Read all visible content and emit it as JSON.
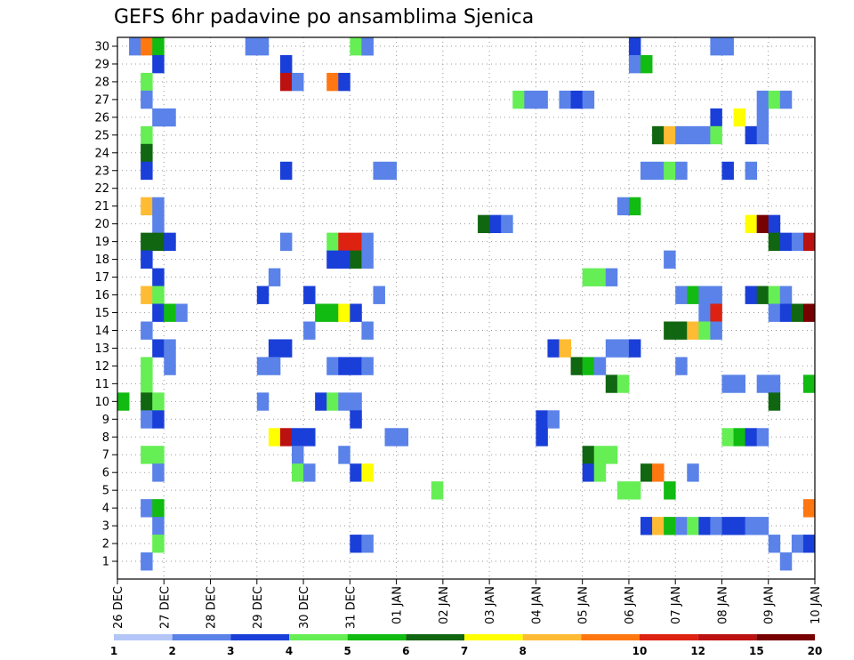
{
  "chart_data": {
    "type": "heatmap",
    "title": "GEFS 6hr padavine po ansamblima Sjenica",
    "xlabel": "",
    "ylabel": "",
    "x_tick_labels": [
      "26 DEC",
      "27 DEC",
      "28 DEC",
      "29 DEC",
      "30 DEC",
      "31 DEC",
      "01 JAN",
      "02 JAN",
      "03 JAN",
      "04 JAN",
      "05 JAN",
      "06 JAN",
      "07 JAN",
      "08 JAN",
      "09 JAN",
      "10 JAN"
    ],
    "y_tick_labels": [
      "1",
      "2",
      "3",
      "4",
      "5",
      "6",
      "7",
      "8",
      "9",
      "10",
      "11",
      "12",
      "13",
      "14",
      "15",
      "16",
      "17",
      "18",
      "19",
      "20",
      "21",
      "22",
      "23",
      "24",
      "25",
      "26",
      "27",
      "28",
      "29",
      "30"
    ],
    "xlim": [
      0,
      60
    ],
    "ylim": [
      0,
      30
    ],
    "grid": true,
    "legend_placement": "bottom",
    "legend": {
      "colors": [
        "#b3c6f7",
        "#5a82e8",
        "#1a3fd8",
        "#66ee55",
        "#11bb11",
        "#116611",
        "#ffff00",
        "#ffbb33",
        "#ff7711",
        "#dd2211",
        "#bb1111",
        "#770000"
      ],
      "labels": [
        "1",
        "2",
        "3",
        "4",
        "5",
        "6",
        "7",
        "8",
        "10",
        "12",
        "15",
        "20"
      ]
    },
    "cells": [
      [
        2,
        30,
        1
      ],
      [
        3,
        30,
        8
      ],
      [
        4,
        30,
        4
      ],
      [
        12,
        30,
        1
      ],
      [
        13,
        30,
        1
      ],
      [
        21,
        30,
        3
      ],
      [
        22,
        30,
        1
      ],
      [
        22,
        30,
        1
      ],
      [
        45,
        30,
        2
      ],
      [
        52,
        30,
        1
      ],
      [
        53,
        30,
        1
      ],
      [
        4,
        29,
        2
      ],
      [
        15,
        29,
        2
      ],
      [
        45,
        29,
        1
      ],
      [
        46,
        29,
        4
      ],
      [
        3,
        28,
        3
      ],
      [
        15,
        28,
        10
      ],
      [
        16,
        28,
        1
      ],
      [
        19,
        28,
        8
      ],
      [
        20,
        28,
        2
      ],
      [
        3,
        27,
        1
      ],
      [
        35,
        27,
        3
      ],
      [
        36,
        27,
        1
      ],
      [
        37,
        27,
        1
      ],
      [
        39,
        27,
        1
      ],
      [
        40,
        27,
        2
      ],
      [
        41,
        27,
        1
      ],
      [
        56,
        27,
        1
      ],
      [
        57,
        27,
        3
      ],
      [
        58,
        27,
        1
      ],
      [
        4,
        26,
        1
      ],
      [
        5,
        26,
        1
      ],
      [
        52,
        26,
        2
      ],
      [
        54,
        26,
        6
      ],
      [
        56,
        26,
        1
      ],
      [
        3,
        25,
        3
      ],
      [
        47,
        25,
        5
      ],
      [
        48,
        25,
        7
      ],
      [
        49,
        25,
        1
      ],
      [
        50,
        25,
        1
      ],
      [
        51,
        25,
        1
      ],
      [
        52,
        25,
        3
      ],
      [
        55,
        25,
        2
      ],
      [
        56,
        25,
        1
      ],
      [
        3,
        24,
        5
      ],
      [
        3,
        23,
        2
      ],
      [
        15,
        23,
        2
      ],
      [
        23,
        23,
        1
      ],
      [
        24,
        23,
        1
      ],
      [
        46,
        23,
        1
      ],
      [
        47,
        23,
        1
      ],
      [
        48,
        23,
        3
      ],
      [
        49,
        23,
        1
      ],
      [
        53,
        23,
        2
      ],
      [
        55,
        23,
        1
      ],
      [
        3,
        21,
        7
      ],
      [
        4,
        21,
        1
      ],
      [
        44,
        21,
        1
      ],
      [
        45,
        21,
        4
      ],
      [
        4,
        20,
        1
      ],
      [
        32,
        20,
        5
      ],
      [
        33,
        20,
        2
      ],
      [
        34,
        20,
        1
      ],
      [
        55,
        20,
        6
      ],
      [
        56,
        20,
        11
      ],
      [
        57,
        20,
        2
      ],
      [
        3,
        19,
        5
      ],
      [
        4,
        19,
        5
      ],
      [
        5,
        19,
        2
      ],
      [
        15,
        19,
        1
      ],
      [
        19,
        19,
        3
      ],
      [
        20,
        19,
        9
      ],
      [
        21,
        19,
        9
      ],
      [
        22,
        19,
        1
      ],
      [
        57,
        19,
        5
      ],
      [
        58,
        19,
        2
      ],
      [
        59,
        19,
        1
      ],
      [
        60,
        19,
        10
      ],
      [
        3,
        18,
        2
      ],
      [
        19,
        18,
        2
      ],
      [
        20,
        18,
        2
      ],
      [
        21,
        18,
        5
      ],
      [
        22,
        18,
        1
      ],
      [
        48,
        18,
        1
      ],
      [
        4,
        17,
        2
      ],
      [
        14,
        17,
        1
      ],
      [
        41,
        17,
        3
      ],
      [
        42,
        17,
        3
      ],
      [
        43,
        17,
        1
      ],
      [
        3,
        16,
        7
      ],
      [
        4,
        16,
        3
      ],
      [
        13,
        16,
        2
      ],
      [
        17,
        16,
        2
      ],
      [
        23,
        16,
        1
      ],
      [
        49,
        16,
        1
      ],
      [
        50,
        16,
        4
      ],
      [
        51,
        16,
        1
      ],
      [
        52,
        16,
        1
      ],
      [
        55,
        16,
        2
      ],
      [
        56,
        16,
        5
      ],
      [
        57,
        16,
        3
      ],
      [
        58,
        16,
        1
      ],
      [
        4,
        15,
        2
      ],
      [
        5,
        15,
        4
      ],
      [
        6,
        15,
        1
      ],
      [
        18,
        15,
        4
      ],
      [
        19,
        15,
        4
      ],
      [
        20,
        15,
        6
      ],
      [
        21,
        15,
        2
      ],
      [
        51,
        15,
        1
      ],
      [
        52,
        15,
        9
      ],
      [
        57,
        15,
        1
      ],
      [
        58,
        15,
        2
      ],
      [
        59,
        15,
        5
      ],
      [
        60,
        15,
        11
      ],
      [
        3,
        14,
        1
      ],
      [
        17,
        14,
        1
      ],
      [
        22,
        14,
        1
      ],
      [
        48,
        14,
        5
      ],
      [
        49,
        14,
        5
      ],
      [
        50,
        14,
        7
      ],
      [
        51,
        14,
        3
      ],
      [
        52,
        14,
        1
      ],
      [
        4,
        13,
        2
      ],
      [
        5,
        13,
        1
      ],
      [
        14,
        13,
        2
      ],
      [
        15,
        13,
        2
      ],
      [
        38,
        13,
        2
      ],
      [
        39,
        13,
        7
      ],
      [
        43,
        13,
        1
      ],
      [
        44,
        13,
        1
      ],
      [
        45,
        13,
        2
      ],
      [
        3,
        12,
        3
      ],
      [
        5,
        12,
        1
      ],
      [
        13,
        12,
        1
      ],
      [
        14,
        12,
        1
      ],
      [
        19,
        12,
        1
      ],
      [
        20,
        12,
        2
      ],
      [
        21,
        12,
        2
      ],
      [
        22,
        12,
        1
      ],
      [
        40,
        12,
        5
      ],
      [
        41,
        12,
        4
      ],
      [
        42,
        12,
        1
      ],
      [
        49,
        12,
        1
      ],
      [
        3,
        11,
        3
      ],
      [
        43,
        11,
        5
      ],
      [
        44,
        11,
        3
      ],
      [
        53,
        11,
        1
      ],
      [
        54,
        11,
        1
      ],
      [
        56,
        11,
        1
      ],
      [
        57,
        11,
        1
      ],
      [
        60,
        11,
        4
      ],
      [
        1,
        10,
        4
      ],
      [
        3,
        10,
        5
      ],
      [
        4,
        10,
        3
      ],
      [
        13,
        10,
        1
      ],
      [
        18,
        10,
        2
      ],
      [
        19,
        10,
        3
      ],
      [
        20,
        10,
        1
      ],
      [
        21,
        10,
        1
      ],
      [
        57,
        10,
        5
      ],
      [
        3,
        9,
        1
      ],
      [
        4,
        9,
        2
      ],
      [
        21,
        9,
        2
      ],
      [
        37,
        9,
        2
      ],
      [
        38,
        9,
        1
      ],
      [
        14,
        8,
        6
      ],
      [
        15,
        8,
        10
      ],
      [
        16,
        8,
        2
      ],
      [
        17,
        8,
        2
      ],
      [
        24,
        8,
        1
      ],
      [
        25,
        8,
        1
      ],
      [
        37,
        8,
        2
      ],
      [
        53,
        8,
        3
      ],
      [
        54,
        8,
        4
      ],
      [
        55,
        8,
        2
      ],
      [
        56,
        8,
        1
      ],
      [
        3,
        7,
        3
      ],
      [
        4,
        7,
        3
      ],
      [
        16,
        7,
        1
      ],
      [
        20,
        7,
        1
      ],
      [
        41,
        7,
        5
      ],
      [
        42,
        7,
        3
      ],
      [
        43,
        7,
        3
      ],
      [
        4,
        6,
        1
      ],
      [
        16,
        6,
        3
      ],
      [
        17,
        6,
        1
      ],
      [
        21,
        6,
        2
      ],
      [
        22,
        6,
        6
      ],
      [
        41,
        6,
        2
      ],
      [
        42,
        6,
        3
      ],
      [
        46,
        6,
        5
      ],
      [
        47,
        6,
        8
      ],
      [
        50,
        6,
        1
      ],
      [
        28,
        5,
        3
      ],
      [
        44,
        5,
        3
      ],
      [
        45,
        5,
        3
      ],
      [
        48,
        5,
        4
      ],
      [
        3,
        4,
        1
      ],
      [
        4,
        4,
        4
      ],
      [
        60,
        4,
        8
      ],
      [
        4,
        3,
        1
      ],
      [
        46,
        3,
        2
      ],
      [
        47,
        3,
        7
      ],
      [
        48,
        3,
        4
      ],
      [
        49,
        3,
        1
      ],
      [
        50,
        3,
        3
      ],
      [
        51,
        3,
        2
      ],
      [
        52,
        3,
        1
      ],
      [
        53,
        3,
        2
      ],
      [
        54,
        3,
        2
      ],
      [
        55,
        3,
        1
      ],
      [
        56,
        3,
        1
      ],
      [
        4,
        2,
        3
      ],
      [
        21,
        2,
        2
      ],
      [
        22,
        2,
        1
      ],
      [
        57,
        2,
        1
      ],
      [
        59,
        2,
        1
      ],
      [
        60,
        2,
        2
      ],
      [
        3,
        1,
        1
      ],
      [
        58,
        1,
        1
      ]
    ]
  }
}
